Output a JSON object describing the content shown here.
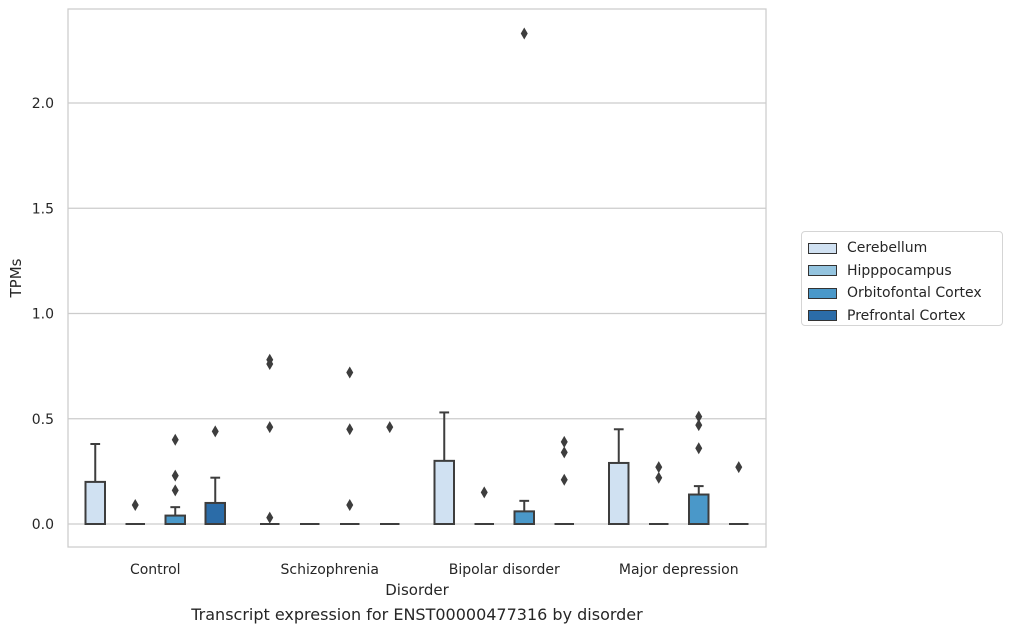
{
  "chart_data": {
    "type": "box",
    "title": "",
    "caption": "Transcript expression for ENST00000477316 by disorder",
    "xlabel": "Disorder",
    "ylabel": "TPMs",
    "ylim": [
      -0.11,
      2.47
    ],
    "yticks": [
      "0.0",
      "0.5",
      "1.0",
      "1.5",
      "2.0"
    ],
    "ytick_values": [
      0.0,
      0.5,
      1.0,
      1.5,
      2.0
    ],
    "grid": "horizontal",
    "legend_position": "right",
    "categories": [
      "Control",
      "Schizophrenia",
      "Bipolar disorder",
      "Major depression"
    ],
    "series": [
      {
        "name": "Cerebellum",
        "color": "#d0e1f2",
        "boxes": [
          {
            "q1": 0.0,
            "median": 0.0,
            "q3": 0.2,
            "whisker_low": 0.0,
            "whisker_high": 0.38,
            "outliers": []
          },
          {
            "q1": 0.0,
            "median": 0.0,
            "q3": 0.0,
            "whisker_low": 0.0,
            "whisker_high": 0.0,
            "outliers": [
              0.78,
              0.76,
              0.46,
              0.03
            ]
          },
          {
            "q1": 0.0,
            "median": 0.0,
            "q3": 0.3,
            "whisker_low": 0.0,
            "whisker_high": 0.53,
            "outliers": []
          },
          {
            "q1": 0.0,
            "median": 0.0,
            "q3": 0.29,
            "whisker_low": 0.0,
            "whisker_high": 0.45,
            "outliers": []
          }
        ]
      },
      {
        "name": "Hipppocampus",
        "color": "#94c4df",
        "boxes": [
          {
            "q1": 0.0,
            "median": 0.0,
            "q3": 0.0,
            "whisker_low": 0.0,
            "whisker_high": 0.0,
            "outliers": [
              0.09
            ]
          },
          {
            "q1": 0.0,
            "median": 0.0,
            "q3": 0.0,
            "whisker_low": 0.0,
            "whisker_high": 0.0,
            "outliers": []
          },
          {
            "q1": 0.0,
            "median": 0.0,
            "q3": 0.0,
            "whisker_low": 0.0,
            "whisker_high": 0.0,
            "outliers": [
              0.15
            ]
          },
          {
            "q1": 0.0,
            "median": 0.0,
            "q3": 0.0,
            "whisker_low": 0.0,
            "whisker_high": 0.0,
            "outliers": [
              0.27,
              0.22
            ]
          }
        ]
      },
      {
        "name": "Orbitofontal Cortex",
        "color": "#4a98c9",
        "boxes": [
          {
            "q1": 0.0,
            "median": 0.0,
            "q3": 0.04,
            "whisker_low": 0.0,
            "whisker_high": 0.08,
            "outliers": [
              0.4,
              0.23,
              0.16
            ]
          },
          {
            "q1": 0.0,
            "median": 0.0,
            "q3": 0.0,
            "whisker_low": 0.0,
            "whisker_high": 0.0,
            "outliers": [
              0.72,
              0.45,
              0.09
            ]
          },
          {
            "q1": 0.0,
            "median": 0.0,
            "q3": 0.06,
            "whisker_low": 0.0,
            "whisker_high": 0.11,
            "outliers": [
              2.33
            ]
          },
          {
            "q1": 0.0,
            "median": 0.0,
            "q3": 0.14,
            "whisker_low": 0.0,
            "whisker_high": 0.18,
            "outliers": [
              0.51,
              0.47,
              0.36
            ]
          }
        ]
      },
      {
        "name": "Prefrontal Cortex",
        "color": "#2b6ca8",
        "boxes": [
          {
            "q1": 0.0,
            "median": 0.0,
            "q3": 0.1,
            "whisker_low": 0.0,
            "whisker_high": 0.22,
            "outliers": [
              0.44
            ]
          },
          {
            "q1": 0.0,
            "median": 0.0,
            "q3": 0.0,
            "whisker_low": 0.0,
            "whisker_high": 0.0,
            "outliers": [
              0.46
            ]
          },
          {
            "q1": 0.0,
            "median": 0.0,
            "q3": 0.0,
            "whisker_low": 0.0,
            "whisker_high": 0.0,
            "outliers": [
              0.39,
              0.34,
              0.21
            ]
          },
          {
            "q1": 0.0,
            "median": 0.0,
            "q3": 0.0,
            "whisker_low": 0.0,
            "whisker_high": 0.0,
            "outliers": [
              0.27
            ]
          }
        ]
      }
    ]
  }
}
